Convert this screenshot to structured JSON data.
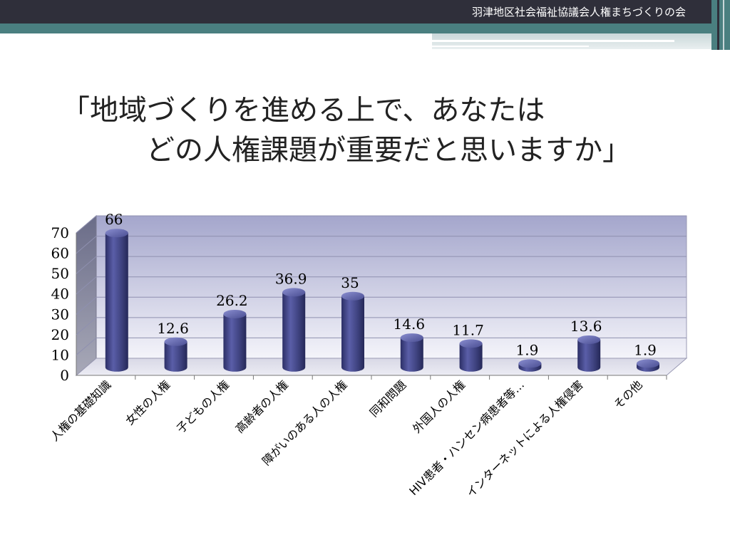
{
  "header": {
    "text": "羽津地区社会福祉協議会人権まちづくりの会"
  },
  "title": {
    "line1": "「地域づくりを進める上で、あなたは",
    "line2": "どの人権課題が重要だと思いますか」"
  },
  "colors": {
    "header_bg": "#2f2f3a",
    "teal": "#4a7f80",
    "bar": "#3f4380",
    "plot_bg_top": "#a4a6cc",
    "plot_bg_bottom": "#f4f4fa"
  },
  "chart_data": {
    "type": "bar",
    "style": "3d-cylinder",
    "categories": [
      "人権の基礎知識",
      "女性の人権",
      "子どもの人権",
      "高齢者の人権",
      "障がいのある人の人権",
      "同和問題",
      "外国人の人権",
      "HIV患者・ハンセン病患者等…",
      "インターネットによる人権侵害",
      "その他"
    ],
    "values": [
      66,
      12.6,
      26.2,
      36.9,
      35,
      14.6,
      11.7,
      1.9,
      13.6,
      1.9
    ],
    "data_labels": [
      "66",
      "12.6",
      "26.2",
      "36.9",
      "35",
      "14.6",
      "11.7",
      "1.9",
      "13.6",
      "1.9"
    ],
    "ylim": [
      0,
      70
    ],
    "yticks": [
      0,
      10,
      20,
      30,
      40,
      50,
      60,
      70
    ],
    "grid": true,
    "legend": "none"
  }
}
